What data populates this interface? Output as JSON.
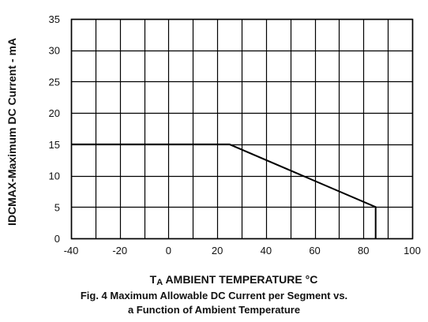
{
  "chart_data": {
    "type": "line",
    "title": "",
    "xlabel": "TA AMBIENT TEMPERATURE °C",
    "xlabel_main": "T",
    "xlabel_sub": "A",
    "xlabel_rest": " AMBIENT TEMPERATURE °C",
    "ylabel": "IDCMAX-Maximum DC Current - mA",
    "xlim": [
      -40,
      100
    ],
    "ylim": [
      0,
      35
    ],
    "x_ticks": [
      -40,
      -20,
      0,
      20,
      40,
      60,
      80,
      100
    ],
    "y_ticks": [
      0,
      5,
      10,
      15,
      20,
      25,
      30,
      35
    ],
    "x_minor_step": 10,
    "grid": true,
    "series": [
      {
        "x": [
          -40,
          25,
          85,
          85
        ],
        "y": [
          15,
          15,
          5,
          0
        ],
        "color": "#000000"
      }
    ],
    "caption_line1": "Fig. 4  Maximum Allowable DC Current per Segment vs.",
    "caption_line2": "a Function of Ambient Temperature"
  }
}
